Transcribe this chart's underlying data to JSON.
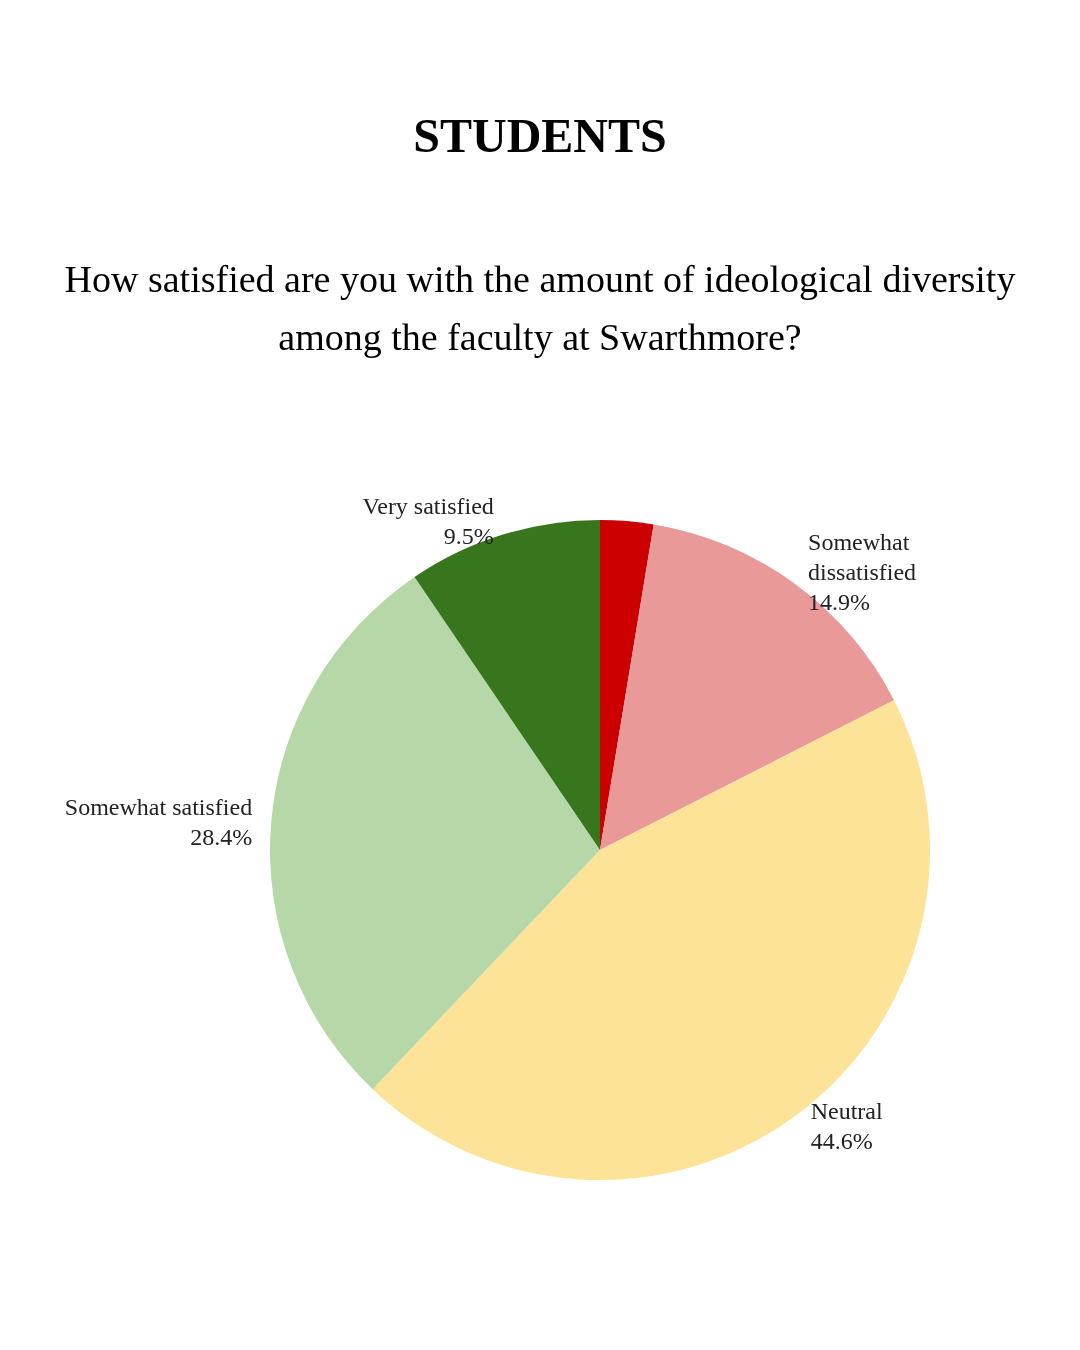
{
  "chart_data": {
    "type": "pie",
    "title": "STUDENTS",
    "subtitle": "How satisfied are you with the amount of ideological diversity among the faculty at Swarthmore?",
    "categories": [
      null,
      "Somewhat dissatisfied",
      "Neutral",
      "Somewhat satisfied",
      "Very satisfied"
    ],
    "values": [
      2.6,
      14.9,
      44.6,
      28.4,
      9.5
    ],
    "value_labels": [
      null,
      "14.9%",
      "44.6%",
      "28.4%",
      "9.5%"
    ],
    "colors": [
      "#cc0000",
      "#ea9999",
      "#fde398",
      "#b6d7a8",
      "#38761d"
    ]
  }
}
